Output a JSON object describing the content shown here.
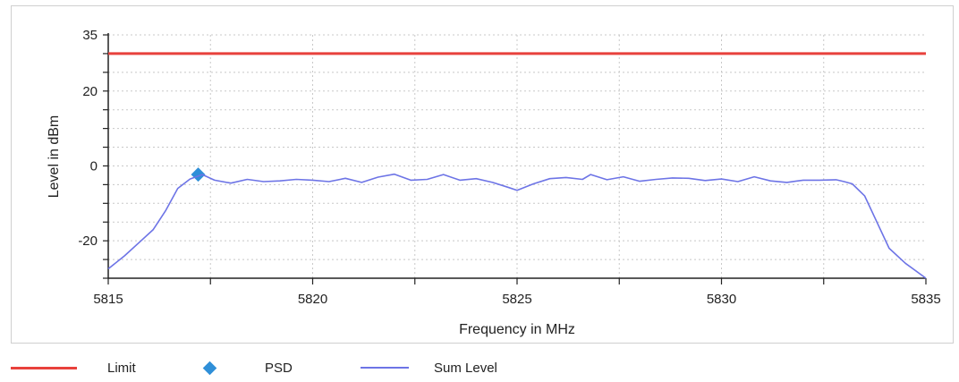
{
  "chart_data": {
    "type": "line",
    "title": "",
    "xlabel": "Frequency in MHz",
    "ylabel": "Level in dBm",
    "xlim": [
      5815,
      5835
    ],
    "ylim": [
      -30,
      35
    ],
    "x_ticks": [
      5815,
      5820,
      5825,
      5830,
      5835
    ],
    "y_ticks": [
      35,
      20,
      0,
      -20
    ],
    "grid": true,
    "legend_position": "bottom",
    "series": [
      {
        "name": "Limit",
        "kind": "line",
        "color": "#e8413c",
        "x": [
          5815,
          5835
        ],
        "y": [
          30,
          30
        ]
      },
      {
        "name": "PSD",
        "kind": "marker",
        "marker": "diamond",
        "color": "#2f8fd8",
        "x": [
          5817.2
        ],
        "y": [
          -2.3
        ]
      },
      {
        "name": "Sum Level",
        "kind": "line",
        "color": "#6d74e6",
        "x": [
          5815,
          5815.4,
          5815.8,
          5816.1,
          5816.4,
          5816.7,
          5817.0,
          5817.3,
          5817.6,
          5818.0,
          5818.4,
          5818.8,
          5819.2,
          5819.6,
          5820.0,
          5820.4,
          5820.8,
          5821.2,
          5821.6,
          5822.0,
          5822.4,
          5822.8,
          5823.2,
          5823.6,
          5824.0,
          5824.4,
          5824.8,
          5825.0,
          5825.4,
          5825.8,
          5826.2,
          5826.6,
          5826.8,
          5827.2,
          5827.6,
          5828.0,
          5828.4,
          5828.8,
          5829.2,
          5829.6,
          5830.0,
          5830.4,
          5830.8,
          5831.2,
          5831.6,
          5832.0,
          5832.4,
          5832.8,
          5833.0,
          5833.2,
          5833.5,
          5833.8,
          5834.1,
          5834.5,
          5835.0
        ],
        "y": [
          -27.5,
          -24,
          -20,
          -17,
          -12,
          -6,
          -3.5,
          -2.3,
          -3.8,
          -4.6,
          -3.6,
          -4.2,
          -4.0,
          -3.6,
          -3.8,
          -4.2,
          -3.3,
          -4.4,
          -3.0,
          -2.2,
          -3.8,
          -3.6,
          -2.3,
          -3.8,
          -3.4,
          -4.4,
          -5.8,
          -6.5,
          -4.8,
          -3.4,
          -3.1,
          -3.6,
          -2.3,
          -3.7,
          -2.9,
          -4.1,
          -3.6,
          -3.2,
          -3.3,
          -3.9,
          -3.5,
          -4.2,
          -2.9,
          -4.0,
          -4.4,
          -3.8,
          -3.8,
          -3.7,
          -4.2,
          -4.8,
          -8,
          -15,
          -22,
          -26,
          -30
        ]
      }
    ]
  }
}
